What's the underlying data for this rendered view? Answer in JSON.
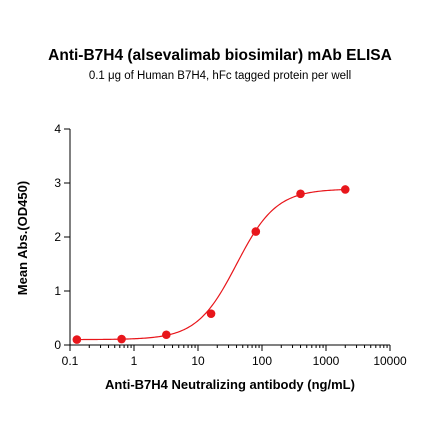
{
  "chart_data": {
    "type": "scatter",
    "title": "Anti-B7H4 (alsevalimab biosimilar) mAb ELISA",
    "subtitle": "0.1 μg of Human B7H4, hFc tagged protein per well",
    "xlabel": "Anti-B7H4 Neutralizing antibody (ng/mL)",
    "ylabel": "Mean Abs.(OD450)",
    "xscale": "log",
    "xlim": [
      0.1,
      10000
    ],
    "ylim": [
      0,
      4
    ],
    "x_ticks": [
      "0.1",
      "1",
      "10",
      "100",
      "1000",
      "10000"
    ],
    "y_ticks": [
      "0",
      "1",
      "2",
      "3",
      "4"
    ],
    "grid": false,
    "color": "#e8161b",
    "series": [
      {
        "x": [
          0.128,
          0.64,
          3.2,
          16,
          80,
          400,
          2000
        ],
        "y": [
          0.1,
          0.11,
          0.19,
          0.58,
          2.1,
          2.8,
          2.88
        ],
        "fit": "4PL sigmoid"
      }
    ]
  }
}
